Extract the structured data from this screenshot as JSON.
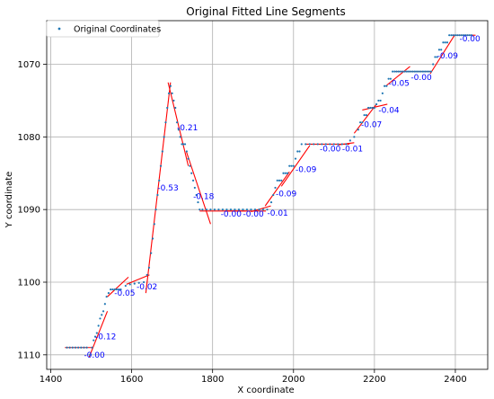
{
  "chart_data": {
    "type": "scatter",
    "title": "Original Fitted Line Segments",
    "xlabel": "X coordinate",
    "ylabel": "Y coordinate",
    "xlim": [
      1390,
      2480
    ],
    "ylim": [
      1112,
      1064
    ],
    "y_inverted": true,
    "grid": true,
    "legend": {
      "placement": "top-left",
      "entries": [
        "Original Coordinates"
      ]
    },
    "x_ticks": [
      1400,
      1600,
      1800,
      2000,
      2200,
      2400
    ],
    "y_ticks": [
      1070,
      1080,
      1090,
      1100,
      1110
    ],
    "colors": {
      "points": "#1f77b4",
      "lines": "#ff0000",
      "labels": "#0000ff",
      "grid": "#b0b0b0"
    },
    "points": [
      [
        1440,
        1109
      ],
      [
        1447,
        1109
      ],
      [
        1454,
        1109
      ],
      [
        1461,
        1109
      ],
      [
        1468,
        1109
      ],
      [
        1475,
        1109
      ],
      [
        1482,
        1109
      ],
      [
        1489,
        1109
      ],
      [
        1497,
        1110
      ],
      [
        1502,
        1109
      ],
      [
        1506,
        1108
      ],
      [
        1510,
        1107.5
      ],
      [
        1514,
        1107
      ],
      [
        1518,
        1106
      ],
      [
        1522,
        1105
      ],
      [
        1526,
        1104.5
      ],
      [
        1530,
        1104
      ],
      [
        1534,
        1103
      ],
      [
        1538,
        1102
      ],
      [
        1543,
        1101.5
      ],
      [
        1548,
        1101
      ],
      [
        1553,
        1101
      ],
      [
        1558,
        1101
      ],
      [
        1563,
        1101
      ],
      [
        1568,
        1101
      ],
      [
        1573,
        1101
      ],
      [
        1585,
        1100.5
      ],
      [
        1596,
        1100.3
      ],
      [
        1607,
        1100.2
      ],
      [
        1618,
        1100.1
      ],
      [
        1630,
        1100
      ],
      [
        1638,
        1099
      ],
      [
        1643,
        1098
      ],
      [
        1648,
        1096
      ],
      [
        1652,
        1094
      ],
      [
        1656,
        1092
      ],
      [
        1660,
        1090
      ],
      [
        1664,
        1088
      ],
      [
        1668,
        1086
      ],
      [
        1672,
        1084
      ],
      [
        1676,
        1082
      ],
      [
        1680,
        1080
      ],
      [
        1684,
        1078
      ],
      [
        1688,
        1076
      ],
      [
        1692,
        1074
      ],
      [
        1696,
        1073
      ],
      [
        1700,
        1074
      ],
      [
        1704,
        1075
      ],
      [
        1708,
        1076
      ],
      [
        1712,
        1078
      ],
      [
        1716,
        1079
      ],
      [
        1720,
        1080
      ],
      [
        1724,
        1081
      ],
      [
        1728,
        1081
      ],
      [
        1732,
        1081
      ],
      [
        1736,
        1082
      ],
      [
        1740,
        1083
      ],
      [
        1744,
        1084
      ],
      [
        1748,
        1085
      ],
      [
        1752,
        1086
      ],
      [
        1756,
        1087
      ],
      [
        1760,
        1088
      ],
      [
        1764,
        1089
      ],
      [
        1768,
        1090
      ],
      [
        1775,
        1090
      ],
      [
        1785,
        1090
      ],
      [
        1795,
        1090
      ],
      [
        1805,
        1090
      ],
      [
        1815,
        1090
      ],
      [
        1825,
        1090
      ],
      [
        1835,
        1090
      ],
      [
        1845,
        1090
      ],
      [
        1855,
        1090
      ],
      [
        1865,
        1090
      ],
      [
        1875,
        1090
      ],
      [
        1885,
        1090
      ],
      [
        1895,
        1090
      ],
      [
        1905,
        1090
      ],
      [
        1915,
        1090
      ],
      [
        1925,
        1090
      ],
      [
        1935,
        1090
      ],
      [
        1945,
        1089
      ],
      [
        1950,
        1088
      ],
      [
        1955,
        1087
      ],
      [
        1960,
        1086
      ],
      [
        1965,
        1086
      ],
      [
        1970,
        1086
      ],
      [
        1975,
        1085
      ],
      [
        1980,
        1085
      ],
      [
        1985,
        1085
      ],
      [
        1990,
        1084
      ],
      [
        1995,
        1084
      ],
      [
        2000,
        1084
      ],
      [
        2005,
        1083
      ],
      [
        2010,
        1082
      ],
      [
        2015,
        1082
      ],
      [
        2020,
        1081
      ],
      [
        2030,
        1081
      ],
      [
        2040,
        1081
      ],
      [
        2050,
        1081
      ],
      [
        2060,
        1081
      ],
      [
        2070,
        1081
      ],
      [
        2080,
        1081
      ],
      [
        2090,
        1081
      ],
      [
        2100,
        1081
      ],
      [
        2110,
        1081
      ],
      [
        2120,
        1081
      ],
      [
        2130,
        1081
      ],
      [
        2140,
        1080.5
      ],
      [
        2150,
        1080
      ],
      [
        2160,
        1079
      ],
      [
        2165,
        1078
      ],
      [
        2170,
        1078
      ],
      [
        2175,
        1077
      ],
      [
        2180,
        1077
      ],
      [
        2185,
        1076
      ],
      [
        2190,
        1076
      ],
      [
        2195,
        1076
      ],
      [
        2200,
        1076
      ],
      [
        2205,
        1075.5
      ],
      [
        2210,
        1075
      ],
      [
        2215,
        1075
      ],
      [
        2220,
        1074
      ],
      [
        2225,
        1073
      ],
      [
        2230,
        1073
      ],
      [
        2235,
        1072
      ],
      [
        2240,
        1072
      ],
      [
        2245,
        1071
      ],
      [
        2250,
        1071
      ],
      [
        2255,
        1071
      ],
      [
        2260,
        1071
      ],
      [
        2265,
        1071
      ],
      [
        2270,
        1071
      ],
      [
        2275,
        1071
      ],
      [
        2280,
        1071
      ],
      [
        2285,
        1071
      ],
      [
        2290,
        1071
      ],
      [
        2295,
        1071
      ],
      [
        2300,
        1071
      ],
      [
        2305,
        1071
      ],
      [
        2310,
        1071
      ],
      [
        2315,
        1071
      ],
      [
        2320,
        1071
      ],
      [
        2325,
        1071
      ],
      [
        2330,
        1071
      ],
      [
        2335,
        1071
      ],
      [
        2340,
        1071
      ],
      [
        2345,
        1070
      ],
      [
        2350,
        1069
      ],
      [
        2355,
        1069
      ],
      [
        2360,
        1068
      ],
      [
        2365,
        1068
      ],
      [
        2370,
        1067
      ],
      [
        2375,
        1067
      ],
      [
        2380,
        1067
      ],
      [
        2385,
        1066
      ],
      [
        2390,
        1066
      ],
      [
        2395,
        1066
      ],
      [
        2400,
        1066
      ],
      [
        2405,
        1066
      ],
      [
        2410,
        1066
      ],
      [
        2415,
        1066
      ],
      [
        2420,
        1066
      ],
      [
        2425,
        1066
      ],
      [
        2430,
        1066
      ],
      [
        2435,
        1066
      ],
      [
        2440,
        1066
      ]
    ],
    "segments": [
      {
        "x": [
          1435,
          1500
        ],
        "y": [
          1109,
          1109
        ],
        "label": "-0.00",
        "lx": 1482,
        "ly": 1110.0
      },
      {
        "x": [
          1495,
          1540
        ],
        "y": [
          1110.3,
          1104.0
        ],
        "label": "-0.12",
        "lx": 1510,
        "ly": 1107.5
      },
      {
        "x": [
          1540,
          1592
        ],
        "y": [
          1102.0,
          1099.3
        ],
        "label": "-0.05",
        "lx": 1557,
        "ly": 1101.5
      },
      {
        "x": [
          1587,
          1644
        ],
        "y": [
          1100.3,
          1099.0
        ],
        "label": "-0.02",
        "lx": 1612,
        "ly": 1100.6
      },
      {
        "x": [
          1635,
          1696
        ],
        "y": [
          1101.5,
          1072.5
        ],
        "label": "-0.53",
        "lx": 1664,
        "ly": 1087.0
      },
      {
        "x": [
          1690,
          1740
        ],
        "y": [
          1072.5,
          1084.0
        ],
        "label": "-0.21",
        "lx": 1712,
        "ly": 1078.7
      },
      {
        "x": [
          1735,
          1795
        ],
        "y": [
          1082.0,
          1092.0
        ],
        "label": "-0.18",
        "lx": 1752,
        "ly": 1088.2
      },
      {
        "x": [
          1768,
          1882
        ],
        "y": [
          1090.2,
          1090.2
        ],
        "label": "-0.00",
        "lx": 1820,
        "ly": 1090.6
      },
      {
        "x": [
          1830,
          1932
        ],
        "y": [
          1090.2,
          1090.2
        ],
        "label": "-0.00",
        "lx": 1875,
        "ly": 1090.6
      },
      {
        "x": [
          1895,
          1944
        ],
        "y": [
          1090.3,
          1089.5
        ],
        "label": "-0.01",
        "lx": 1935,
        "ly": 1090.5
      },
      {
        "x": [
          1930,
          1990
        ],
        "y": [
          1089.5,
          1084.8
        ],
        "label": "-0.09",
        "lx": 1956,
        "ly": 1087.8
      },
      {
        "x": [
          1970,
          2040
        ],
        "y": [
          1086.8,
          1081.2
        ],
        "label": "-0.09",
        "lx": 2005,
        "ly": 1084.5
      },
      {
        "x": [
          2028,
          2138
        ],
        "y": [
          1081.0,
          1081.0
        ],
        "label": "-0.00",
        "lx": 2065,
        "ly": 1081.6
      },
      {
        "x": [
          2110,
          2150
        ],
        "y": [
          1081.1,
          1080.8
        ],
        "label": "-0.01",
        "lx": 2120,
        "ly": 1081.6
      },
      {
        "x": [
          2150,
          2205
        ],
        "y": [
          1079.5,
          1075.5
        ],
        "label": "-0.07",
        "lx": 2167,
        "ly": 1078.3
      },
      {
        "x": [
          2170,
          2232
        ],
        "y": [
          1076.3,
          1075.5
        ],
        "label": "-0.04",
        "lx": 2210,
        "ly": 1076.3
      },
      {
        "x": [
          2228,
          2288
        ],
        "y": [
          1073.0,
          1070.3
        ],
        "label": "-0.05",
        "lx": 2235,
        "ly": 1072.6
      },
      {
        "x": [
          2248,
          2342
        ],
        "y": [
          1071.0,
          1071.0
        ],
        "label": "-0.00",
        "lx": 2290,
        "ly": 1071.8
      },
      {
        "x": [
          2338,
          2398
        ],
        "y": [
          1071.3,
          1066.0
        ],
        "label": "-0.09",
        "lx": 2355,
        "ly": 1068.8
      },
      {
        "x": [
          2392,
          2450
        ],
        "y": [
          1066.0,
          1066.0
        ],
        "label": "-0.00",
        "lx": 2410,
        "ly": 1066.5
      }
    ]
  }
}
